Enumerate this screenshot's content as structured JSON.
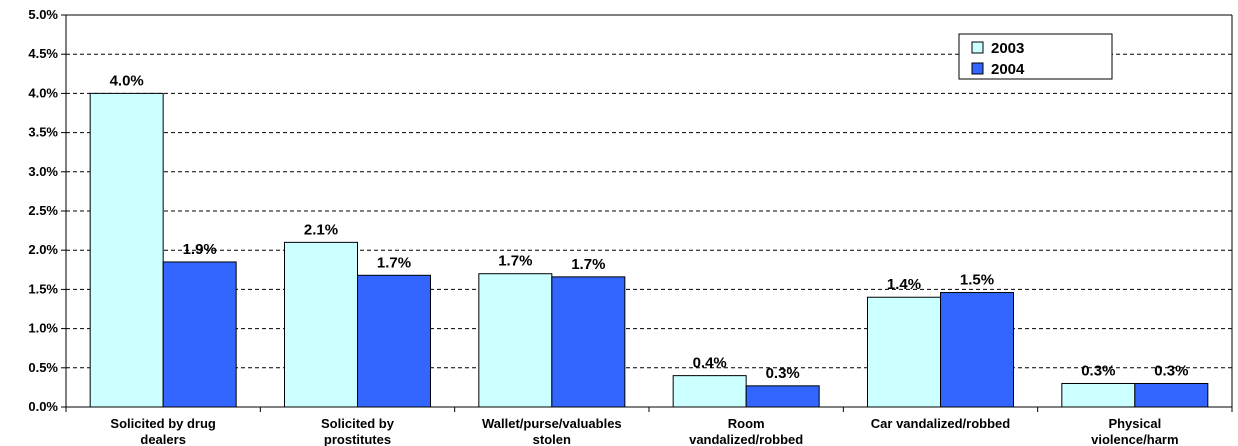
{
  "chart_data": {
    "type": "bar",
    "categories": [
      [
        "Solicited by drug",
        "dealers"
      ],
      [
        "Solicited by",
        "prostitutes"
      ],
      [
        "Wallet/purse/valuables",
        "stolen"
      ],
      [
        "Room",
        "vandalized/robbed"
      ],
      [
        "Car vandalized/robbed"
      ],
      [
        "Physical",
        "violence/harm"
      ]
    ],
    "series": [
      {
        "name": "2003",
        "values": [
          4.0,
          2.1,
          1.7,
          0.4,
          1.4,
          0.3
        ],
        "labels": [
          "4.0%",
          "2.1%",
          "1.7%",
          "0.4%",
          "1.4%",
          "0.3%"
        ],
        "color": "#CCFFFF"
      },
      {
        "name": "2004",
        "values": [
          1.85,
          1.68,
          1.66,
          0.27,
          1.46,
          0.3
        ],
        "labels": [
          "1.9%",
          "1.7%",
          "1.7%",
          "0.3%",
          "1.5%",
          "0.3%"
        ],
        "color": "#3366FF"
      }
    ],
    "ylim": [
      0,
      5.0
    ],
    "yticks": [
      "0.0%",
      "0.5%",
      "1.0%",
      "1.5%",
      "2.0%",
      "2.5%",
      "3.0%",
      "3.5%",
      "4.0%",
      "4.5%",
      "5.0%"
    ],
    "title": "",
    "xlabel": "",
    "ylabel": "",
    "grid": true,
    "legend_position": "top-right"
  }
}
